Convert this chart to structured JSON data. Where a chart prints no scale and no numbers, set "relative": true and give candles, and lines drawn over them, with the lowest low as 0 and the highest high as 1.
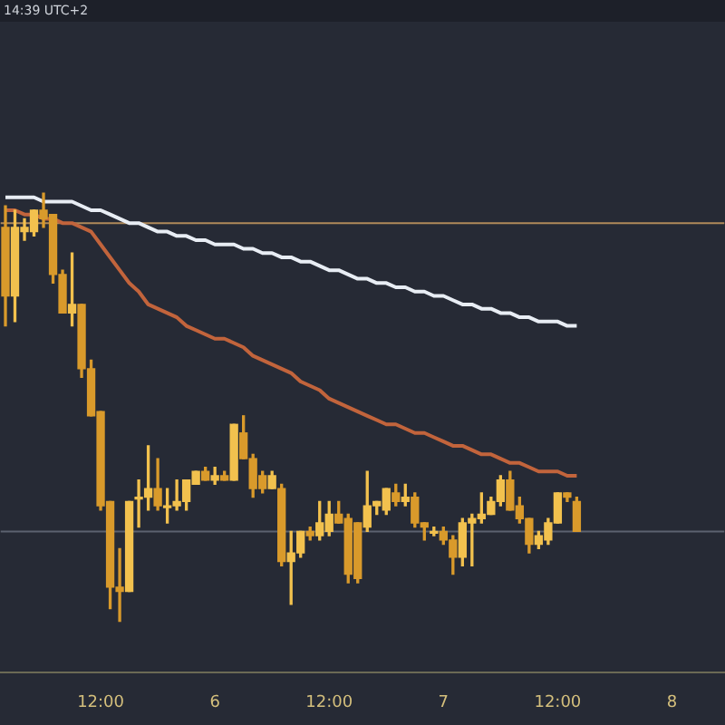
{
  "chart_data": {
    "type": "candlestick",
    "relative": true,
    "annotations": [
      "14:39 UTC+2"
    ],
    "colors": [
      "#d99a2b",
      "#f2c14e",
      "#f2c14e",
      "#f2c14e",
      "#d99a2b",
      "#d99a2b",
      "#d99a2b",
      "#f2c14e",
      "#d99a2b",
      "#d99a2b",
      "#d99a2b",
      "#d99a2b",
      "#d99a2b",
      "#f2c14e",
      "#f2c14e",
      "#f2c14e",
      "#d99a2b",
      "#f2c14e",
      "#f2c14e",
      "#f2c14e",
      "#f2c14e",
      "#d99a2b",
      "#f2c14e",
      "#d99a2b",
      "#f2c14e",
      "#d99a2b",
      "#d99a2b",
      "#d99a2b",
      "#f2c14e",
      "#d99a2b",
      "#f2c14e",
      "#f2c14e",
      "#d99a2b",
      "#f2c14e",
      "#f2c14e",
      "#d99a2b",
      "#d99a2b",
      "#d99a2b",
      "#f2c14e",
      "#f2c14e",
      "#f2c14e",
      "#d99a2b",
      "#f2c14e",
      "#d99a2b",
      "#d99a2b",
      "#f2c14e",
      "#d99a2b",
      "#d99a2b",
      "#f2c14e",
      "#f2c14e",
      "#f2c14e",
      "#f2c14e",
      "#f2c14e",
      "#d99a2b",
      "#d99a2b",
      "#d99a2b",
      "#f2c14e",
      "#f2c14e",
      "#f2c14e",
      "#d99a2b",
      "#d99a2b",
      null,
      null,
      null,
      null,
      null,
      null,
      null,
      null,
      null,
      null,
      null,
      null,
      null,
      null,
      null
    ],
    "categories": [
      null,
      null,
      null,
      null,
      null,
      null,
      null,
      null,
      null,
      null,
      "12:00",
      null,
      null,
      null,
      null,
      null,
      null,
      null,
      null,
      null,
      null,
      null,
      "6",
      null,
      null,
      null,
      null,
      null,
      null,
      null,
      null,
      null,
      null,
      null,
      "12:00",
      null,
      null,
      null,
      null,
      null,
      null,
      null,
      null,
      null,
      null,
      null,
      "7",
      null,
      null,
      null,
      null,
      null,
      null,
      null,
      null,
      null,
      null,
      null,
      "12:00",
      null,
      null,
      null,
      null,
      null,
      null,
      null,
      null,
      null,
      null,
      null,
      "8",
      null,
      null,
      null,
      null,
      null
    ],
    "ohlc": [
      [
        0.92,
        0.97,
        0.69,
        0.76
      ],
      [
        0.76,
        0.96,
        0.7,
        0.92
      ],
      [
        0.91,
        0.94,
        0.89,
        0.92
      ],
      [
        0.91,
        0.96,
        0.9,
        0.96
      ],
      [
        0.96,
        1,
        0.92,
        0.94
      ],
      [
        0.95,
        0.95,
        0.79,
        0.81
      ],
      [
        0.81,
        0.82,
        0.72,
        0.72
      ],
      [
        0.72,
        0.86,
        0.69,
        0.74
      ],
      [
        0.74,
        0.74,
        0.57,
        0.59
      ],
      [
        0.59,
        0.61,
        0.48,
        0.48
      ],
      [
        0.49,
        0.49,
        0.26,
        0.27
      ],
      [
        0.28,
        0.28,
        0.03,
        0.08
      ],
      [
        0.08,
        0.17,
        0,
        0.07
      ],
      [
        0.07,
        0.28,
        0.07,
        0.28
      ],
      [
        0.29,
        0.33,
        0.22,
        0.29
      ],
      [
        0.29,
        0.41,
        0.26,
        0.31
      ],
      [
        0.31,
        0.38,
        0.26,
        0.27
      ],
      [
        0.27,
        0.31,
        0.23,
        0.27
      ],
      [
        0.27,
        0.33,
        0.26,
        0.28
      ],
      [
        0.28,
        0.33,
        0.26,
        0.33
      ],
      [
        0.32,
        0.35,
        0.32,
        0.35
      ],
      [
        0.35,
        0.36,
        0.33,
        0.33
      ],
      [
        0.33,
        0.36,
        0.32,
        0.34
      ],
      [
        0.34,
        0.35,
        0.33,
        0.33
      ],
      [
        0.33,
        0.46,
        0.33,
        0.46
      ],
      [
        0.44,
        0.48,
        0.38,
        0.38
      ],
      [
        0.38,
        0.39,
        0.29,
        0.31
      ],
      [
        0.34,
        0.35,
        0.3,
        0.31
      ],
      [
        0.31,
        0.35,
        0.31,
        0.34
      ],
      [
        0.31,
        0.32,
        0.13,
        0.14
      ],
      [
        0.14,
        0.21,
        0.04,
        0.16
      ],
      [
        0.16,
        0.21,
        0.15,
        0.21
      ],
      [
        0.21,
        0.22,
        0.19,
        0.2
      ],
      [
        0.2,
        0.28,
        0.19,
        0.23
      ],
      [
        0.21,
        0.28,
        0.2,
        0.25
      ],
      [
        0.25,
        0.28,
        0.23,
        0.23
      ],
      [
        0.24,
        0.25,
        0.09,
        0.11
      ],
      [
        0.23,
        0.23,
        0.09,
        0.1
      ],
      [
        0.22,
        0.35,
        0.21,
        0.27
      ],
      [
        0.27,
        0.28,
        0.25,
        0.28
      ],
      [
        0.26,
        0.31,
        0.25,
        0.31
      ],
      [
        0.3,
        0.32,
        0.27,
        0.28
      ],
      [
        0.28,
        0.32,
        0.27,
        0.29
      ],
      [
        0.29,
        0.3,
        0.22,
        0.23
      ],
      [
        0.23,
        0.23,
        0.19,
        0.22
      ],
      [
        0.21,
        0.22,
        0.2,
        0.21
      ],
      [
        0.21,
        0.22,
        0.18,
        0.19
      ],
      [
        0.19,
        0.2,
        0.11,
        0.15
      ],
      [
        0.15,
        0.24,
        0.13,
        0.23
      ],
      [
        0.23,
        0.25,
        0.13,
        0.24
      ],
      [
        0.24,
        0.3,
        0.23,
        0.25
      ],
      [
        0.25,
        0.29,
        0.25,
        0.28
      ],
      [
        0.28,
        0.34,
        0.27,
        0.33
      ],
      [
        0.33,
        0.35,
        0.26,
        0.26
      ],
      [
        0.27,
        0.29,
        0.23,
        0.24
      ],
      [
        0.24,
        0.24,
        0.16,
        0.18
      ],
      [
        0.18,
        0.21,
        0.17,
        0.2
      ],
      [
        0.19,
        0.24,
        0.18,
        0.23
      ],
      [
        0.23,
        0.3,
        0.23,
        0.3
      ],
      [
        0.3,
        0.3,
        0.28,
        0.29
      ],
      [
        0.28,
        0.29,
        0.21,
        0.21
      ],
      null,
      null,
      null,
      null,
      null,
      null,
      null,
      null,
      null,
      null,
      null,
      null,
      null,
      null,
      null
    ],
    "series": [
      {
        "type": "line",
        "color": "#e8edf4",
        "values": [
          0.99,
          0.99,
          0.99,
          0.99,
          0.98,
          0.98,
          0.98,
          0.98,
          0.97,
          0.96,
          0.96,
          0.95,
          0.94,
          0.93,
          0.93,
          0.92,
          0.91,
          0.91,
          0.9,
          0.9,
          0.89,
          0.89,
          0.88,
          0.88,
          0.88,
          0.87,
          0.87,
          0.86,
          0.86,
          0.85,
          0.85,
          0.84,
          0.84,
          0.83,
          0.82,
          0.82,
          0.81,
          0.8,
          0.8,
          0.79,
          0.79,
          0.78,
          0.78,
          0.77,
          0.77,
          0.76,
          0.76,
          0.75,
          0.74,
          0.74,
          0.73,
          0.73,
          0.72,
          0.72,
          0.71,
          0.71,
          0.7,
          0.7,
          0.7,
          0.69,
          0.69,
          null,
          null,
          null,
          null,
          null,
          null,
          null,
          null,
          null,
          null,
          null,
          null,
          null,
          null,
          null
        ]
      },
      {
        "type": "line",
        "color": "#c2643c",
        "values": [
          0.96,
          0.96,
          0.95,
          0.95,
          0.94,
          0.94,
          0.93,
          0.93,
          0.92,
          0.91,
          0.88,
          0.85,
          0.82,
          0.79,
          0.77,
          0.74,
          0.73,
          0.72,
          0.71,
          0.69,
          0.68,
          0.67,
          0.66,
          0.66,
          0.65,
          0.64,
          0.62,
          0.61,
          0.6,
          0.59,
          0.58,
          0.56,
          0.55,
          0.54,
          0.52,
          0.51,
          0.5,
          0.49,
          0.48,
          0.47,
          0.46,
          0.46,
          0.45,
          0.44,
          0.44,
          0.43,
          0.42,
          0.41,
          0.41,
          0.4,
          0.39,
          0.39,
          0.38,
          0.37,
          0.37,
          0.36,
          0.35,
          0.35,
          0.35,
          0.34,
          0.34,
          null,
          null,
          null,
          null,
          null,
          null,
          null,
          null,
          null,
          null,
          null,
          null,
          null,
          null,
          null
        ]
      }
    ],
    "ref_lines": [
      {
        "axis": "y",
        "value": 0.93,
        "color": "#b08a5a"
      },
      {
        "axis": "y",
        "value": 0.21,
        "color": "#5c6270"
      }
    ]
  }
}
